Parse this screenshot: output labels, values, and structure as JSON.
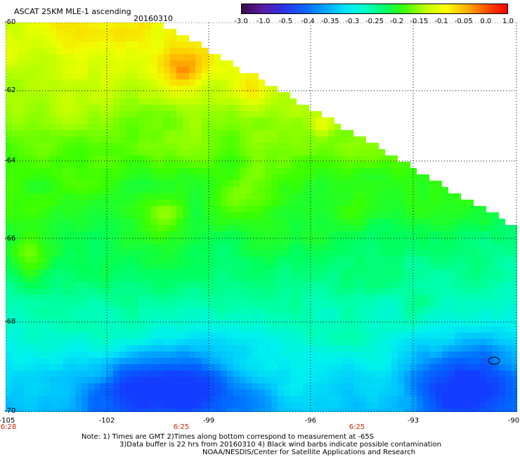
{
  "header": {
    "title": "ASCAT 25KM MLE-1 ascending",
    "date": "20160310"
  },
  "colorbar": {
    "tick_labels": [
      "-3.0",
      "-1.0",
      "-0.5",
      "-0.4",
      "-0.35",
      "-0.3",
      "-0.25",
      "-0.2",
      "-0.15",
      "-0.1",
      "-0.05",
      "0.0",
      "1.0"
    ],
    "colors": [
      "#3a0a4a",
      "#5a1aa0",
      "#3030e0",
      "#1060ff",
      "#00a0ff",
      "#00e0ff",
      "#00ffcc",
      "#00ff66",
      "#40ff00",
      "#c0ff00",
      "#ffff00",
      "#ffb000",
      "#ff5000",
      "#ff0000"
    ]
  },
  "map": {
    "lat_labels": [
      "-60",
      "-62",
      "-64",
      "-66",
      "-68",
      "-70"
    ],
    "lon_labels": [
      "-105",
      "-102",
      "-99",
      "-96",
      "-93",
      "-90"
    ],
    "time_labels": [
      "6:28",
      "6:25",
      "6:25"
    ],
    "grid_style": "dotted"
  },
  "notes": {
    "line1": "Note: 1) Times are GMT 2)Times along bottom correspond to measurement at -65S",
    "line2": "3)Data buffer is 22 hrs from 20160310 4) Black wind barbs indicate possible contamination",
    "line3": "NOAA/NESDIS/Center for Satellite Applications and Research"
  }
}
